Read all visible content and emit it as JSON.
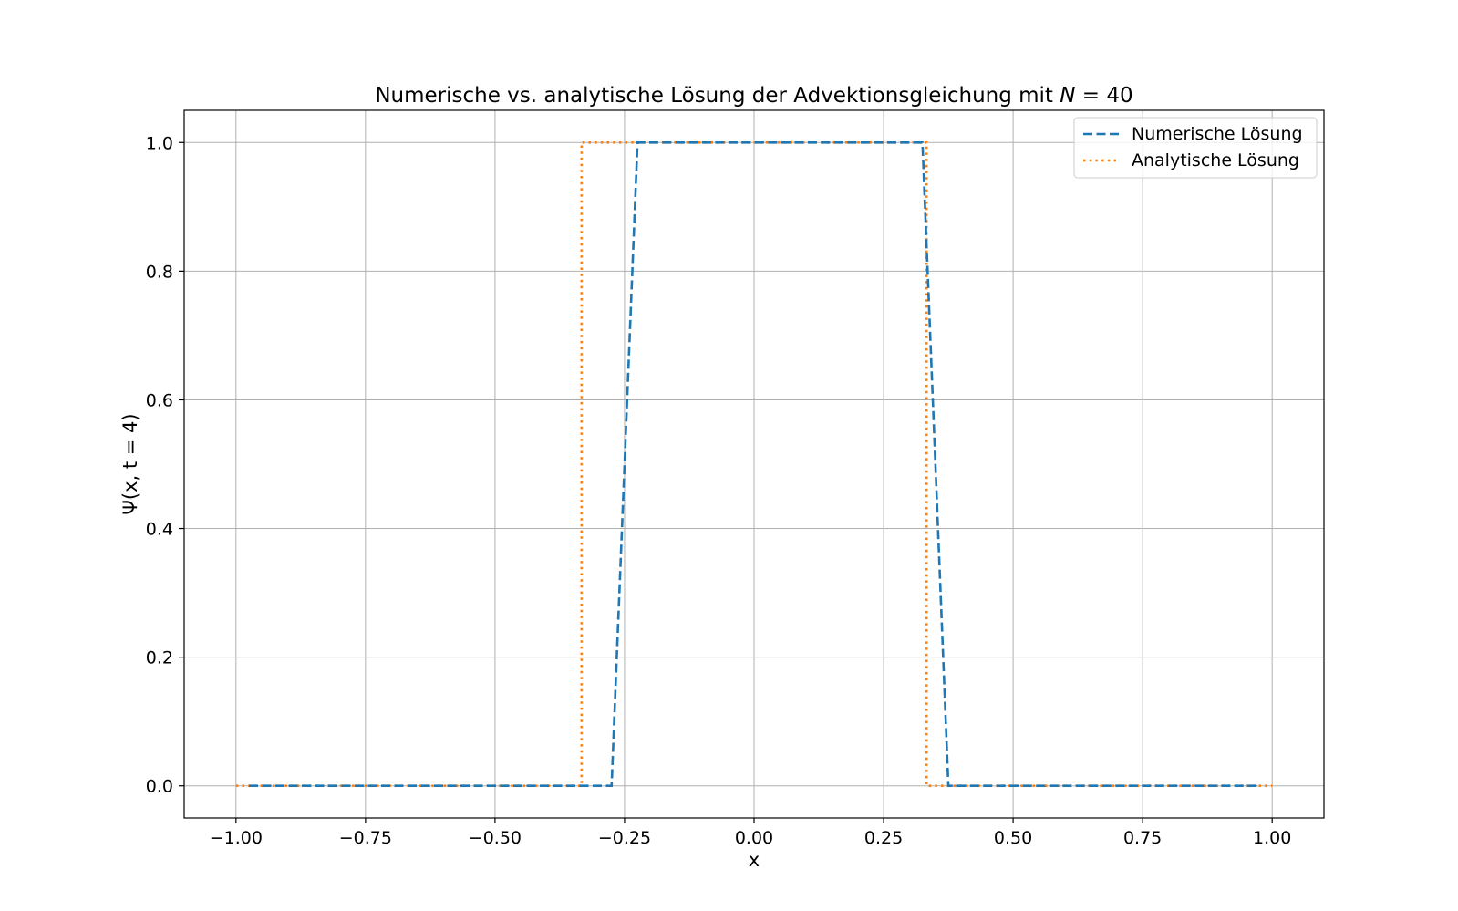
{
  "chart_data": {
    "type": "line",
    "title": "Numerische vs. analytische Lösung der Advektionsgleichung mit N = 40",
    "title_parts": {
      "text": "Numerische vs. analytische Lösung der Advektionsgleichung mit ",
      "N_symbol": "N",
      "equals": " = ",
      "N_value": "40"
    },
    "xlabel": "x",
    "ylabel": "Ψ(x, t = 4)",
    "xlim": [
      -1.1,
      1.1
    ],
    "ylim": [
      -0.05,
      1.05
    ],
    "xticks": [
      -1.0,
      -0.75,
      -0.5,
      -0.25,
      0.0,
      0.25,
      0.5,
      0.75,
      1.0
    ],
    "xtick_labels": [
      "−1.00",
      "−0.75",
      "−0.50",
      "−0.25",
      "0.00",
      "0.25",
      "0.50",
      "0.75",
      "1.00"
    ],
    "yticks": [
      0.0,
      0.2,
      0.4,
      0.6,
      0.8,
      1.0
    ],
    "ytick_labels": [
      "0.0",
      "0.2",
      "0.4",
      "0.6",
      "0.8",
      "1.0"
    ],
    "grid": true,
    "legend_position": "top-right",
    "series": [
      {
        "name": "Numerische Lösung",
        "color": "#1f77b4",
        "style": "dashed",
        "x": [
          -0.975,
          -0.925,
          -0.875,
          -0.825,
          -0.775,
          -0.725,
          -0.675,
          -0.625,
          -0.575,
          -0.525,
          -0.475,
          -0.425,
          -0.375,
          -0.325,
          -0.275,
          -0.225,
          -0.175,
          -0.125,
          -0.075,
          -0.025,
          0.025,
          0.075,
          0.125,
          0.175,
          0.225,
          0.275,
          0.325,
          0.375,
          0.425,
          0.475,
          0.525,
          0.575,
          0.625,
          0.675,
          0.725,
          0.775,
          0.825,
          0.875,
          0.925,
          0.975
        ],
        "y": [
          0,
          0,
          0,
          0,
          0,
          0,
          0,
          0,
          0,
          0,
          0,
          0,
          0,
          0,
          0,
          1,
          1,
          1,
          1,
          1,
          1,
          1,
          1,
          1,
          1,
          1,
          1,
          0,
          0,
          0,
          0,
          0,
          0,
          0,
          0,
          0,
          0,
          0,
          0,
          0
        ]
      },
      {
        "name": "Analytische Lösung",
        "color": "#ff7f0e",
        "style": "dotted",
        "x": [
          -1.0,
          -0.333,
          -0.333,
          0.333,
          0.333,
          1.0
        ],
        "y": [
          0,
          0,
          1,
          1,
          0,
          0
        ]
      }
    ]
  }
}
